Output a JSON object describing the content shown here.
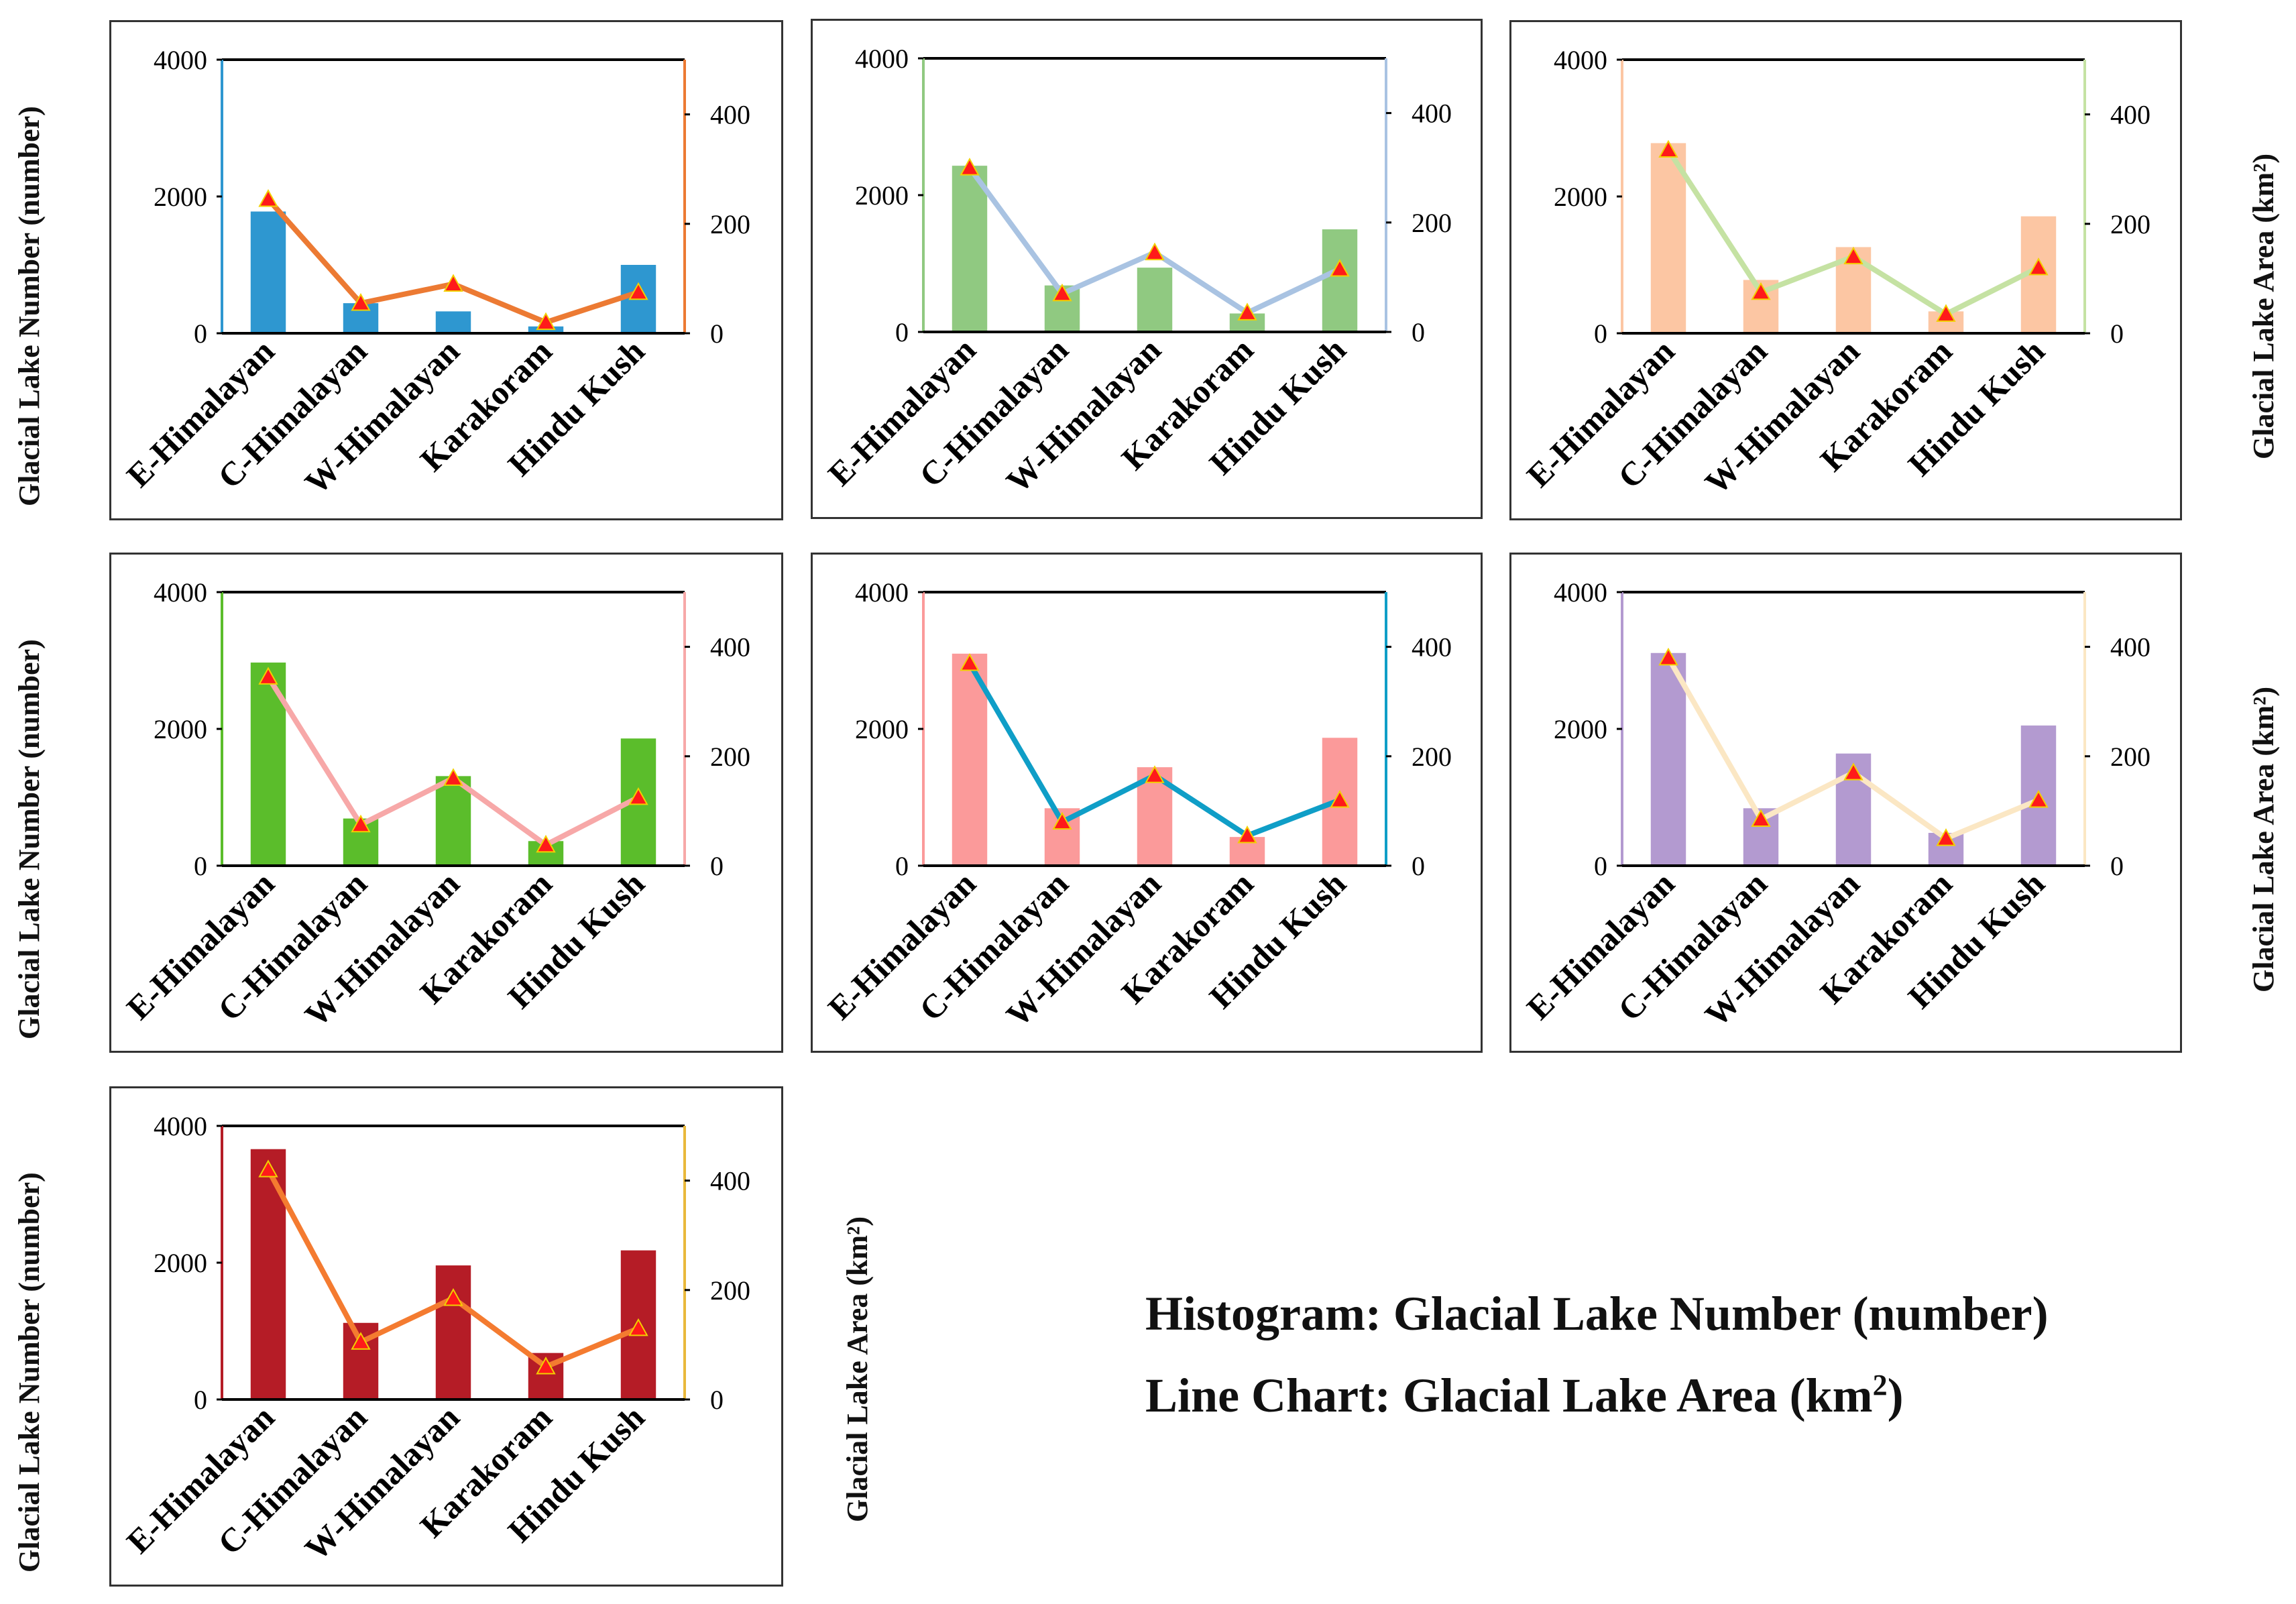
{
  "left_axis_label": "Glacial Lake Number (number)",
  "right_axis_label": "Glacial Lake Area (km²)",
  "right_axis_label_plain": "Glacial Lake Area",
  "right_axis_label_unit": "(km²)",
  "legend": {
    "line1": "Histogram: Glacial Lake Number (number)",
    "line2_prefix": "Line Chart: Glacial Lake Area (km",
    "line2_sup": "2",
    "line2_suffix": ")"
  },
  "chart_data": [
    {
      "type": "bar+line",
      "categories": [
        "E-Himalayan",
        "C-Himalayan",
        "W-Himalayan",
        "Karakoram",
        "Hindu Kush"
      ],
      "bar_values": [
        1780,
        440,
        320,
        100,
        1000
      ],
      "line_values": [
        245,
        55,
        90,
        20,
        75
      ],
      "ylim_left": [
        0,
        4000
      ],
      "ylim_right": [
        0,
        500
      ],
      "yticks_left": [
        "0",
        "2000",
        "4000"
      ],
      "yticks_right": [
        "0",
        "200",
        "400"
      ],
      "bar_color": "#2e97d0",
      "line_color": "#ec7a33",
      "left_axis_color": "#2e97d0",
      "right_axis_color": "#ec7a33",
      "marker_color": "#ff1a1a"
    },
    {
      "type": "bar+line",
      "categories": [
        "E-Himalayan",
        "C-Himalayan",
        "W-Himalayan",
        "Karakoram",
        "Hindu Kush"
      ],
      "bar_values": [
        2430,
        680,
        940,
        270,
        1500
      ],
      "line_values": [
        300,
        70,
        145,
        35,
        115
      ],
      "ylim_left": [
        0,
        4000
      ],
      "ylim_right": [
        0,
        500
      ],
      "yticks_left": [
        "0",
        "2000",
        "4000"
      ],
      "yticks_right": [
        "0",
        "200",
        "400"
      ],
      "bar_color": "#90c981",
      "line_color": "#a9c3e2",
      "left_axis_color": "#90c981",
      "right_axis_color": "#a9c3e2",
      "marker_color": "#ff1a1a"
    },
    {
      "type": "bar+line",
      "categories": [
        "E-Himalayan",
        "C-Himalayan",
        "W-Himalayan",
        "Karakoram",
        "Hindu Kush"
      ],
      "bar_values": [
        2780,
        780,
        1260,
        320,
        1710
      ],
      "line_values": [
        335,
        75,
        140,
        35,
        120
      ],
      "ylim_left": [
        0,
        4000
      ],
      "ylim_right": [
        0,
        500
      ],
      "yticks_left": [
        "0",
        "2000",
        "4000"
      ],
      "yticks_right": [
        "0",
        "200",
        "400"
      ],
      "bar_color": "#fcc6a3",
      "line_color": "#c5e2a3",
      "left_axis_color": "#fcc6a3",
      "right_axis_color": "#c5e2a3",
      "marker_color": "#ff1a1a"
    },
    {
      "type": "bar+line",
      "categories": [
        "E-Himalayan",
        "C-Himalayan",
        "W-Himalayan",
        "Karakoram",
        "Hindu Kush"
      ],
      "bar_values": [
        2970,
        690,
        1310,
        360,
        1860
      ],
      "line_values": [
        345,
        75,
        160,
        38,
        125
      ],
      "ylim_left": [
        0,
        4000
      ],
      "ylim_right": [
        0,
        500
      ],
      "yticks_left": [
        "0",
        "2000",
        "4000"
      ],
      "yticks_right": [
        "0",
        "200",
        "400"
      ],
      "bar_color": "#5bbd2b",
      "line_color": "#f7a8a8",
      "left_axis_color": "#5bbd2b",
      "right_axis_color": "#f7a8a8",
      "marker_color": "#ff1a1a"
    },
    {
      "type": "bar+line",
      "categories": [
        "E-Himalayan",
        "C-Himalayan",
        "W-Himalayan",
        "Karakoram",
        "Hindu Kush"
      ],
      "bar_values": [
        3100,
        840,
        1440,
        420,
        1870
      ],
      "line_values": [
        370,
        80,
        165,
        55,
        120
      ],
      "ylim_left": [
        0,
        4000
      ],
      "ylim_right": [
        0,
        500
      ],
      "yticks_left": [
        "0",
        "2000",
        "4000"
      ],
      "yticks_right": [
        "0",
        "200",
        "400"
      ],
      "bar_color": "#fb9a9a",
      "line_color": "#0f9ec7",
      "left_axis_color": "#fb9a9a",
      "right_axis_color": "#0f9ec7",
      "marker_color": "#ff1a1a"
    },
    {
      "type": "bar+line",
      "categories": [
        "E-Himalayan",
        "C-Himalayan",
        "W-Himalayan",
        "Karakoram",
        "Hindu Kush"
      ],
      "bar_values": [
        3110,
        840,
        1640,
        480,
        2050
      ],
      "line_values": [
        380,
        85,
        170,
        50,
        120
      ],
      "ylim_left": [
        0,
        4000
      ],
      "ylim_right": [
        0,
        500
      ],
      "yticks_left": [
        "0",
        "2000",
        "4000"
      ],
      "yticks_right": [
        "0",
        "200",
        "400"
      ],
      "bar_color": "#b39ad0",
      "line_color": "#fbe7c4",
      "left_axis_color": "#b39ad0",
      "right_axis_color": "#fbe7c4",
      "marker_color": "#ff1a1a"
    },
    {
      "type": "bar+line",
      "categories": [
        "E-Himalayan",
        "C-Himalayan",
        "W-Himalayan",
        "Karakoram",
        "Hindu Kush"
      ],
      "bar_values": [
        3660,
        1120,
        1960,
        680,
        2180
      ],
      "line_values": [
        420,
        105,
        185,
        60,
        130
      ],
      "ylim_left": [
        0,
        4000
      ],
      "ylim_right": [
        0,
        500
      ],
      "yticks_left": [
        "0",
        "2000",
        "4000"
      ],
      "yticks_right": [
        "0",
        "200",
        "400"
      ],
      "bar_color": "#b51c26",
      "line_color": "#f47b30",
      "left_axis_color": "#b51c26",
      "right_axis_color": "#e9b83b",
      "marker_color": "#ff1a1a"
    }
  ]
}
